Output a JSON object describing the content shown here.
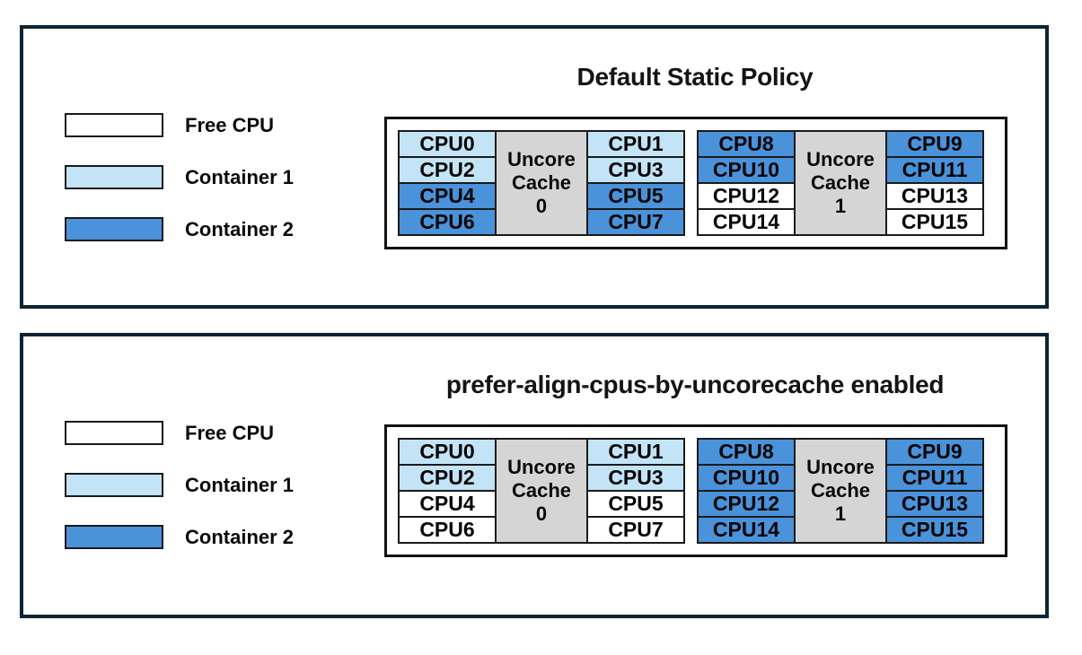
{
  "colors": {
    "free_cpu": "#ffffff",
    "container1": "#c2e4f6",
    "container2": "#4a92d9",
    "uncore_cache_bg": "#d5d5d5",
    "panel_border": "#0e2433",
    "cell_border": "#1a1a1a"
  },
  "legend": [
    {
      "label": "Free CPU",
      "state": "free_cpu"
    },
    {
      "label": "Container 1",
      "state": "container1"
    },
    {
      "label": "Container 2",
      "state": "container2"
    }
  ],
  "panels": [
    {
      "id": "default-static-policy",
      "title": "Default Static Policy",
      "groups": [
        {
          "cache_label": "Uncore\nCache\n0",
          "left_cpus": [
            {
              "label": "CPU0",
              "state": "container1"
            },
            {
              "label": "CPU2",
              "state": "container1"
            },
            {
              "label": "CPU4",
              "state": "container2"
            },
            {
              "label": "CPU6",
              "state": "container2"
            }
          ],
          "right_cpus": [
            {
              "label": "CPU1",
              "state": "container1"
            },
            {
              "label": "CPU3",
              "state": "container1"
            },
            {
              "label": "CPU5",
              "state": "container2"
            },
            {
              "label": "CPU7",
              "state": "container2"
            }
          ]
        },
        {
          "cache_label": "Uncore\nCache\n1",
          "left_cpus": [
            {
              "label": "CPU8",
              "state": "container2"
            },
            {
              "label": "CPU10",
              "state": "container2"
            },
            {
              "label": "CPU12",
              "state": "free_cpu"
            },
            {
              "label": "CPU14",
              "state": "free_cpu"
            }
          ],
          "right_cpus": [
            {
              "label": "CPU9",
              "state": "container2"
            },
            {
              "label": "CPU11",
              "state": "container2"
            },
            {
              "label": "CPU13",
              "state": "free_cpu"
            },
            {
              "label": "CPU15",
              "state": "free_cpu"
            }
          ]
        }
      ]
    },
    {
      "id": "prefer-align-cpus-by-uncorecache",
      "title": "prefer-align-cpus-by-uncorecache enabled",
      "groups": [
        {
          "cache_label": "Uncore\nCache\n0",
          "left_cpus": [
            {
              "label": "CPU0",
              "state": "container1"
            },
            {
              "label": "CPU2",
              "state": "container1"
            },
            {
              "label": "CPU4",
              "state": "free_cpu"
            },
            {
              "label": "CPU6",
              "state": "free_cpu"
            }
          ],
          "right_cpus": [
            {
              "label": "CPU1",
              "state": "container1"
            },
            {
              "label": "CPU3",
              "state": "container1"
            },
            {
              "label": "CPU5",
              "state": "free_cpu"
            },
            {
              "label": "CPU7",
              "state": "free_cpu"
            }
          ]
        },
        {
          "cache_label": "Uncore\nCache\n1",
          "left_cpus": [
            {
              "label": "CPU8",
              "state": "container2"
            },
            {
              "label": "CPU10",
              "state": "container2"
            },
            {
              "label": "CPU12",
              "state": "container2"
            },
            {
              "label": "CPU14",
              "state": "container2"
            }
          ],
          "right_cpus": [
            {
              "label": "CPU9",
              "state": "container2"
            },
            {
              "label": "CPU11",
              "state": "container2"
            },
            {
              "label": "CPU13",
              "state": "container2"
            },
            {
              "label": "CPU15",
              "state": "container2"
            }
          ]
        }
      ]
    }
  ]
}
